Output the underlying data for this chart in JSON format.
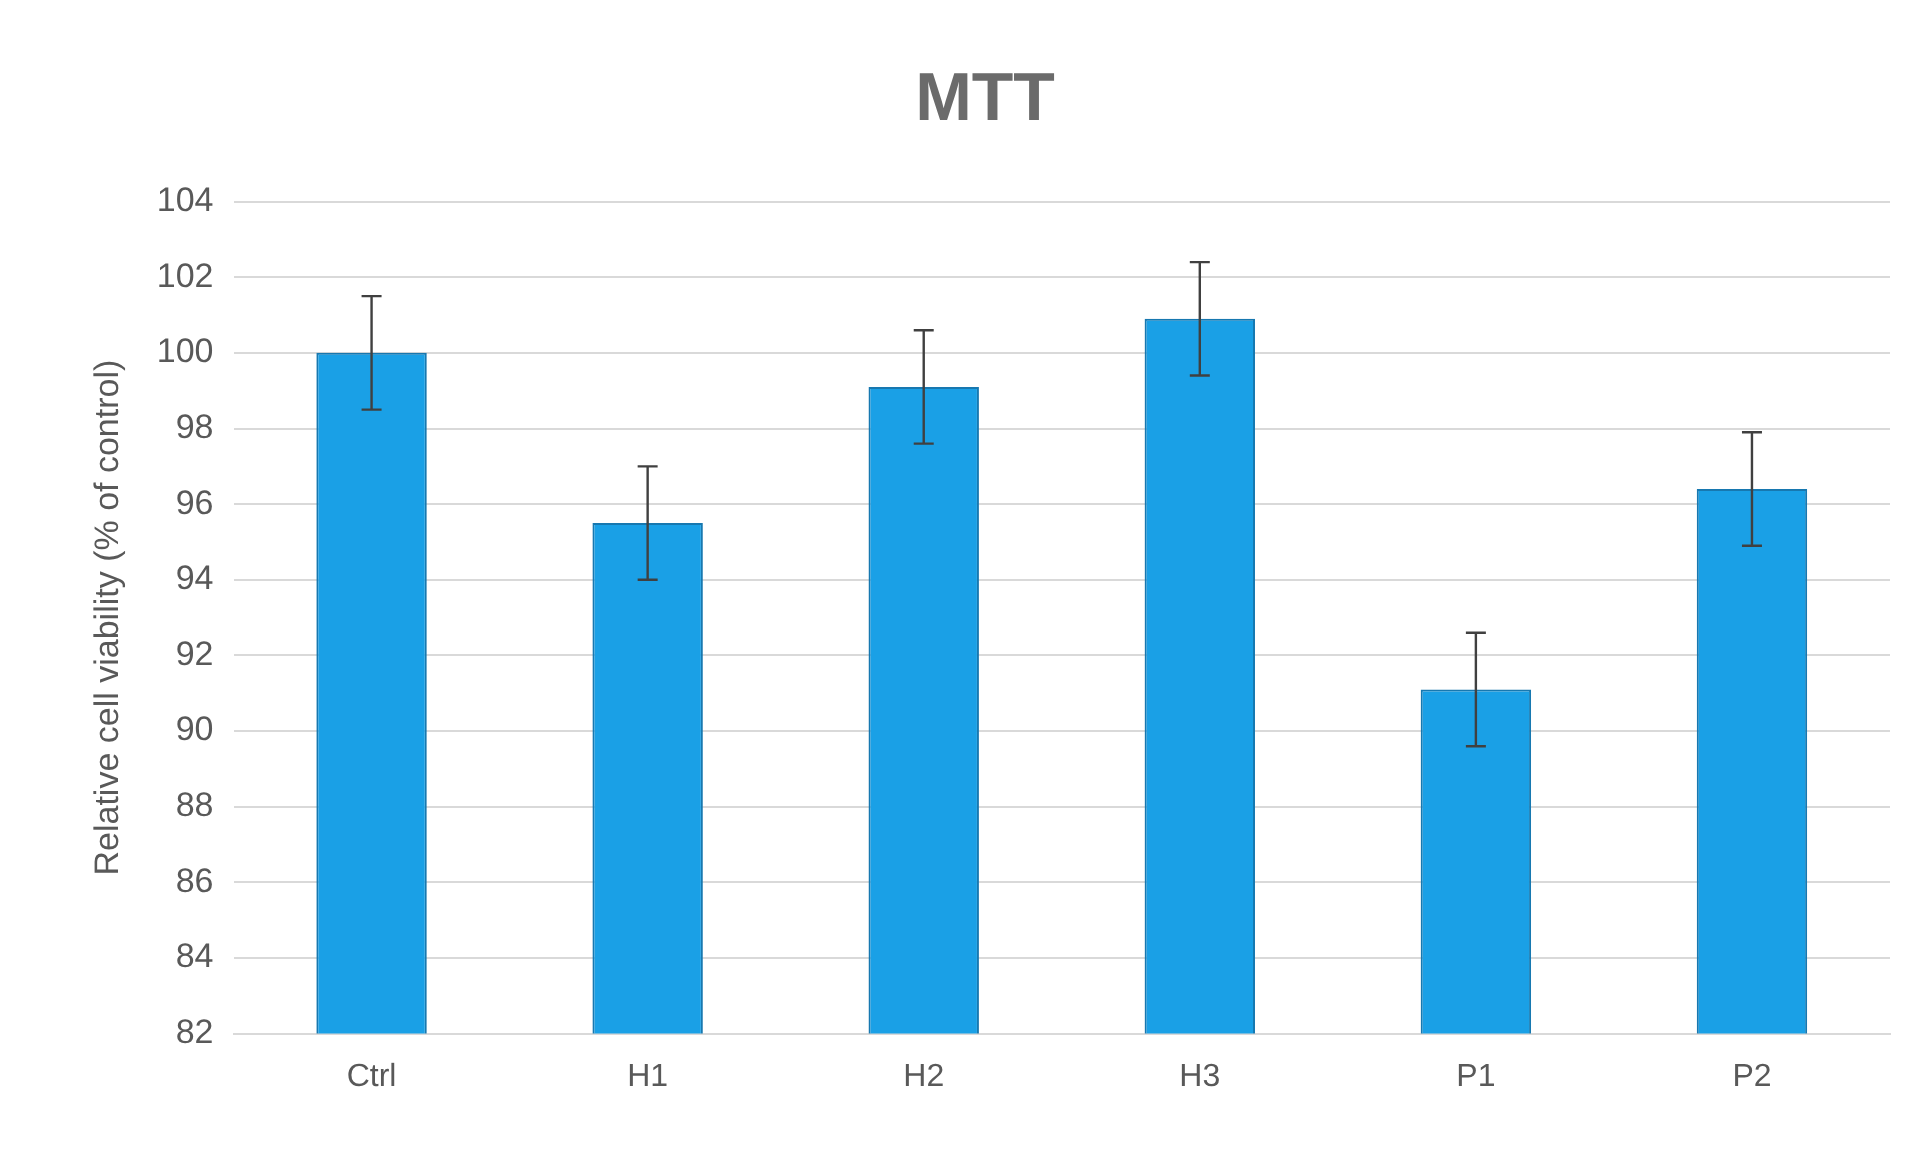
{
  "chart_data": {
    "type": "bar",
    "title": "MTT",
    "ylabel": "Relative cell viability (% of control)",
    "categories": [
      "Ctrl",
      "H1",
      "H2",
      "H3",
      "P1",
      "P2"
    ],
    "values": [
      100,
      95.5,
      99.1,
      100.9,
      91.1,
      96.4
    ],
    "errors": [
      1.5,
      1.5,
      1.5,
      1.5,
      1.5,
      1.5
    ],
    "color": "#1aa0e6",
    "ylim": [
      82,
      104
    ],
    "yticks": [
      82,
      84,
      86,
      88,
      90,
      92,
      94,
      96,
      98,
      100,
      102,
      104
    ],
    "grid": "y",
    "legend": false
  }
}
